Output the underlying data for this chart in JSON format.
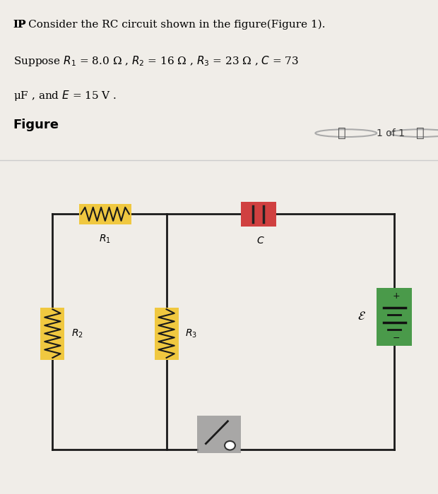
{
  "bg_color_top": "#c8e0f0",
  "bg_color_main": "#f0ede8",
  "text_line1": "IP Consider the RC circuit shown in the figure(Figure 1).",
  "text_line2": "Suppose $R_1$ = 8.0 Ω , $R_2$ = 16 Ω , $R_3$ = 23 Ω , $C$ = 73",
  "text_line3": "μF , and $E$ = 15 V .",
  "figure_label": "Figure",
  "nav_text": "1 of 1",
  "resistor_color": "#f0c840",
  "capacitor_color": "#d04040",
  "battery_color": "#4a9a4a",
  "switch_color": "#909090",
  "wire_color": "#1a1a1a",
  "circuit_bg": "#e8e4dc"
}
